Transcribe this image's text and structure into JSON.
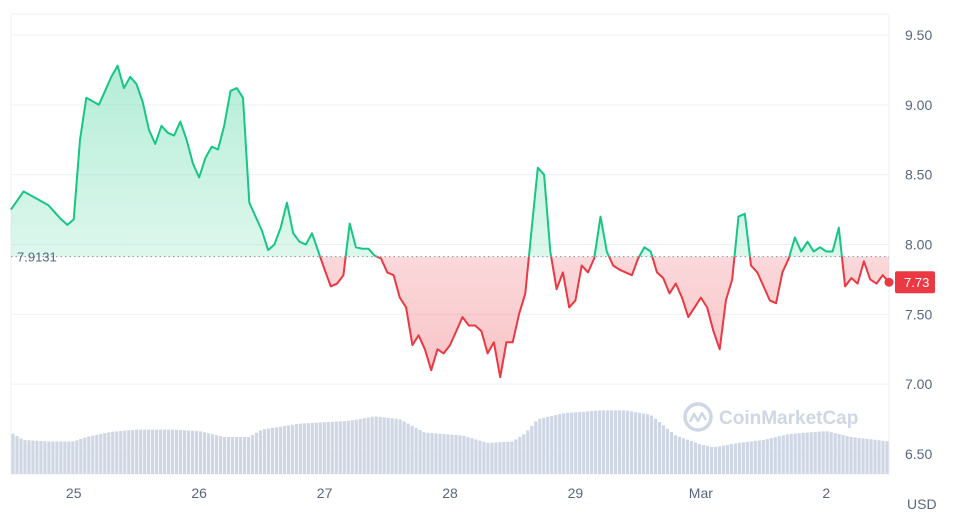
{
  "chart_data": {
    "type": "area",
    "y_ticks": [
      "9.50",
      "9.00",
      "8.50",
      "8.00",
      "7.50",
      "7.00",
      "6.50"
    ],
    "y_tick_values": [
      9.5,
      9.0,
      8.5,
      8.0,
      7.5,
      7.0,
      6.5
    ],
    "ylim": [
      6.45,
      9.6
    ],
    "x_ticks": [
      "25",
      "26",
      "27",
      "28",
      "29",
      "Mar",
      "2"
    ],
    "x_tick_values": [
      0.5,
      1.5,
      2.5,
      3.5,
      4.5,
      5.5,
      6.5
    ],
    "xlim": [
      0,
      7.0
    ],
    "unit": "USD",
    "reference": {
      "label": "7.9131",
      "value": 7.9131
    },
    "last_price": {
      "label": "7.73",
      "value": 7.73
    },
    "colors": {
      "up": "#16c784",
      "down": "#ea3943",
      "volume": "#cfd6e4",
      "grid": "#eff2f5"
    },
    "grid": true,
    "price": [
      [
        0.0,
        8.25
      ],
      [
        0.1,
        8.38
      ],
      [
        0.2,
        8.33
      ],
      [
        0.3,
        8.28
      ],
      [
        0.4,
        8.18
      ],
      [
        0.45,
        8.14
      ],
      [
        0.5,
        8.18
      ],
      [
        0.55,
        8.75
      ],
      [
        0.6,
        9.05
      ],
      [
        0.7,
        9.0
      ],
      [
        0.75,
        9.1
      ],
      [
        0.8,
        9.2
      ],
      [
        0.85,
        9.28
      ],
      [
        0.9,
        9.12
      ],
      [
        0.95,
        9.2
      ],
      [
        1.0,
        9.15
      ],
      [
        1.05,
        9.02
      ],
      [
        1.1,
        8.82
      ],
      [
        1.15,
        8.72
      ],
      [
        1.2,
        8.85
      ],
      [
        1.25,
        8.8
      ],
      [
        1.3,
        8.78
      ],
      [
        1.35,
        8.88
      ],
      [
        1.4,
        8.75
      ],
      [
        1.45,
        8.58
      ],
      [
        1.5,
        8.48
      ],
      [
        1.55,
        8.62
      ],
      [
        1.6,
        8.7
      ],
      [
        1.65,
        8.68
      ],
      [
        1.7,
        8.85
      ],
      [
        1.75,
        9.1
      ],
      [
        1.8,
        9.12
      ],
      [
        1.85,
        9.05
      ],
      [
        1.9,
        8.3
      ],
      [
        1.95,
        8.2
      ],
      [
        2.0,
        8.1
      ],
      [
        2.05,
        7.96
      ],
      [
        2.1,
        8.0
      ],
      [
        2.15,
        8.12
      ],
      [
        2.2,
        8.3
      ],
      [
        2.25,
        8.08
      ],
      [
        2.3,
        8.02
      ],
      [
        2.35,
        8.0
      ],
      [
        2.4,
        8.08
      ],
      [
        2.45,
        7.95
      ],
      [
        2.5,
        7.82
      ],
      [
        2.55,
        7.7
      ],
      [
        2.6,
        7.72
      ],
      [
        2.65,
        7.78
      ],
      [
        2.7,
        8.15
      ],
      [
        2.75,
        7.98
      ],
      [
        2.8,
        7.97
      ],
      [
        2.85,
        7.97
      ],
      [
        2.9,
        7.92
      ],
      [
        2.95,
        7.9
      ],
      [
        3.0,
        7.8
      ],
      [
        3.05,
        7.78
      ],
      [
        3.1,
        7.62
      ],
      [
        3.15,
        7.55
      ],
      [
        3.2,
        7.28
      ],
      [
        3.25,
        7.35
      ],
      [
        3.3,
        7.25
      ],
      [
        3.35,
        7.1
      ],
      [
        3.4,
        7.25
      ],
      [
        3.45,
        7.22
      ],
      [
        3.5,
        7.28
      ],
      [
        3.55,
        7.38
      ],
      [
        3.6,
        7.48
      ],
      [
        3.65,
        7.42
      ],
      [
        3.7,
        7.42
      ],
      [
        3.75,
        7.38
      ],
      [
        3.8,
        7.22
      ],
      [
        3.85,
        7.3
      ],
      [
        3.9,
        7.05
      ],
      [
        3.95,
        7.3
      ],
      [
        4.0,
        7.3
      ],
      [
        4.05,
        7.5
      ],
      [
        4.1,
        7.65
      ],
      [
        4.15,
        8.1
      ],
      [
        4.2,
        8.55
      ],
      [
        4.25,
        8.5
      ],
      [
        4.3,
        7.95
      ],
      [
        4.35,
        7.68
      ],
      [
        4.4,
        7.8
      ],
      [
        4.45,
        7.55
      ],
      [
        4.5,
        7.6
      ],
      [
        4.55,
        7.85
      ],
      [
        4.6,
        7.8
      ],
      [
        4.65,
        7.9
      ],
      [
        4.7,
        8.2
      ],
      [
        4.75,
        7.95
      ],
      [
        4.8,
        7.85
      ],
      [
        4.85,
        7.82
      ],
      [
        4.9,
        7.8
      ],
      [
        4.95,
        7.78
      ],
      [
        5.0,
        7.9
      ],
      [
        5.05,
        7.98
      ],
      [
        5.1,
        7.95
      ],
      [
        5.15,
        7.8
      ],
      [
        5.2,
        7.76
      ],
      [
        5.25,
        7.65
      ],
      [
        5.3,
        7.72
      ],
      [
        5.35,
        7.62
      ],
      [
        5.4,
        7.48
      ],
      [
        5.45,
        7.55
      ],
      [
        5.5,
        7.62
      ],
      [
        5.55,
        7.55
      ],
      [
        5.6,
        7.38
      ],
      [
        5.65,
        7.25
      ],
      [
        5.7,
        7.6
      ],
      [
        5.75,
        7.75
      ],
      [
        5.8,
        8.2
      ],
      [
        5.85,
        8.22
      ],
      [
        5.9,
        7.85
      ],
      [
        5.95,
        7.8
      ],
      [
        6.0,
        7.7
      ],
      [
        6.05,
        7.6
      ],
      [
        6.1,
        7.58
      ],
      [
        6.15,
        7.8
      ],
      [
        6.2,
        7.9
      ],
      [
        6.25,
        8.05
      ],
      [
        6.3,
        7.95
      ],
      [
        6.35,
        8.02
      ],
      [
        6.4,
        7.95
      ],
      [
        6.45,
        7.98
      ],
      [
        6.5,
        7.95
      ],
      [
        6.55,
        7.95
      ],
      [
        6.6,
        8.12
      ],
      [
        6.65,
        7.7
      ],
      [
        6.7,
        7.76
      ],
      [
        6.75,
        7.72
      ],
      [
        6.8,
        7.88
      ],
      [
        6.85,
        7.75
      ],
      [
        6.9,
        7.72
      ],
      [
        6.95,
        7.78
      ],
      [
        7.0,
        7.73
      ]
    ],
    "volume": [
      [
        0.0,
        0.56
      ],
      [
        0.1,
        0.46
      ],
      [
        0.3,
        0.44
      ],
      [
        0.5,
        0.44
      ],
      [
        0.6,
        0.5
      ],
      [
        0.8,
        0.57
      ],
      [
        1.0,
        0.6
      ],
      [
        1.3,
        0.6
      ],
      [
        1.5,
        0.58
      ],
      [
        1.7,
        0.5
      ],
      [
        1.9,
        0.5
      ],
      [
        2.0,
        0.6
      ],
      [
        2.3,
        0.68
      ],
      [
        2.7,
        0.72
      ],
      [
        2.9,
        0.78
      ],
      [
        3.1,
        0.74
      ],
      [
        3.3,
        0.56
      ],
      [
        3.6,
        0.52
      ],
      [
        3.8,
        0.42
      ],
      [
        4.0,
        0.44
      ],
      [
        4.1,
        0.55
      ],
      [
        4.2,
        0.74
      ],
      [
        4.4,
        0.82
      ],
      [
        4.7,
        0.86
      ],
      [
        4.9,
        0.86
      ],
      [
        5.1,
        0.8
      ],
      [
        5.3,
        0.52
      ],
      [
        5.5,
        0.4
      ],
      [
        5.6,
        0.36
      ],
      [
        5.8,
        0.42
      ],
      [
        6.0,
        0.46
      ],
      [
        6.2,
        0.54
      ],
      [
        6.5,
        0.58
      ],
      [
        6.7,
        0.5
      ],
      [
        7.0,
        0.44
      ]
    ]
  },
  "watermark": {
    "brand": "CoinMarketCap",
    "logo": "coinmarketcap-logo-icon"
  }
}
